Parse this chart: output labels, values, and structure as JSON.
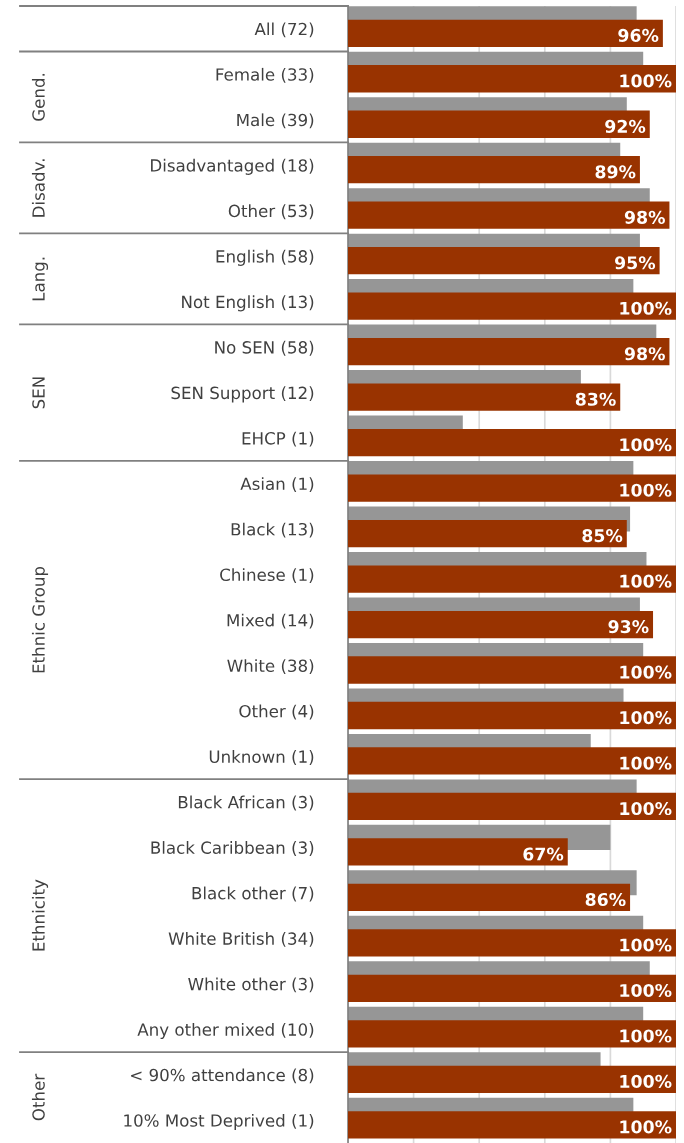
{
  "chart_data": {
    "type": "bar",
    "orientation": "horizontal",
    "categories": [
      "All (72)",
      "Female (33)",
      "Male (39)",
      "Disadvantaged (18)",
      "Other (53)",
      "English (58)",
      "Not English (13)",
      "No SEN (58)",
      "SEN Support (12)",
      "EHCP (1)",
      "Asian (1)",
      "Black (13)",
      "Chinese (1)",
      "Mixed (14)",
      "White (38)",
      "Other (4)",
      "Unknown (1)",
      "Black African (3)",
      "Black Caribbean (3)",
      "Black other (7)",
      "White British (34)",
      "White other (3)",
      "Any other mixed (10)",
      "< 90% attendance (8)",
      "10% Most Deprived (1)"
    ],
    "series": [
      {
        "color": "#969696",
        "values": [
          88,
          90,
          85,
          83,
          92,
          89,
          87,
          94,
          71,
          35,
          87,
          86,
          91,
          89,
          90,
          84,
          74,
          88,
          80,
          88,
          90,
          92,
          90,
          77,
          87
        ]
      },
      {
        "color": "#993300",
        "values": [
          96,
          100,
          92,
          89,
          98,
          95,
          100,
          98,
          83,
          100,
          100,
          85,
          100,
          93,
          100,
          100,
          100,
          100,
          67,
          86,
          100,
          100,
          100,
          100,
          100
        ],
        "value_labels": [
          "96%",
          "100%",
          "92%",
          "89%",
          "98%",
          "95%",
          "100%",
          "98%",
          "83%",
          "100%",
          "100%",
          "85%",
          "100%",
          "93%",
          "100%",
          "100%",
          "100%",
          "100%",
          "67%",
          "86%",
          "100%",
          "100%",
          "100%",
          "100%",
          "100%"
        ]
      }
    ],
    "xlim": [
      0,
      100
    ],
    "xticks": [
      {
        "value": 0,
        "label": null
      },
      {
        "value": 20,
        "label": null
      },
      {
        "value": 40,
        "label": null
      },
      {
        "value": 60,
        "label": null
      },
      {
        "value": 80,
        "label": null
      },
      {
        "value": 100,
        "label": null
      }
    ],
    "grid": "x",
    "tick_labels": "y",
    "annotations": [
      "Gend.",
      "Disadv.",
      "Lang.",
      "SEN",
      "Ethnic Group",
      "Ethnicity",
      "Other"
    ]
  }
}
